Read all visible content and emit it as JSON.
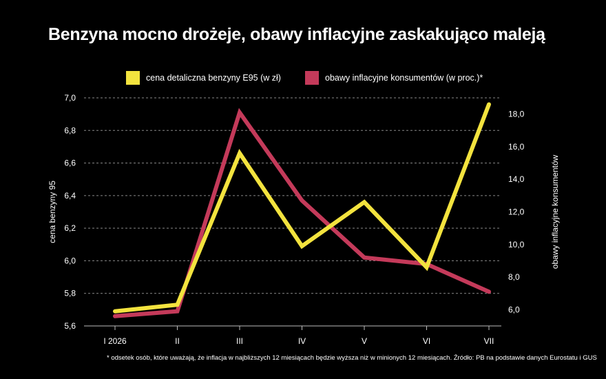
{
  "title": "Benzyna mocno drożeje, obawy inflacyjne zaskakująco maleją",
  "footnote": "* odsetek osób, które uważają, że inflacja w najbliższych 12 miesiącach będzie wyższa niż w minionych 12 miesiącach. Źródło: PB na podstawie danych Eurostatu i GUS",
  "chart_data": {
    "type": "line",
    "categories": [
      "I 2026",
      "II",
      "III",
      "IV",
      "V",
      "VI",
      "VII"
    ],
    "series": [
      {
        "name": "cena detaliczna benzyny E95 (w zł)",
        "axis": "left",
        "color": "#f3e33e",
        "values": [
          5.69,
          5.73,
          6.66,
          6.09,
          6.36,
          5.96,
          6.96
        ]
      },
      {
        "name": "obawy inflacyjne konsumentów (w proc.)*",
        "axis": "right",
        "color": "#c43a5a",
        "values": [
          5.6,
          5.9,
          18.1,
          12.7,
          9.2,
          8.8,
          7.1
        ]
      }
    ],
    "ylabel": "cena benzyny 95",
    "y2label": "obawy inflacyjne konsumentów",
    "ylim": [
      5.6,
      7.0
    ],
    "yticks": [
      "5,6",
      "5,8",
      "6,0",
      "6,2",
      "6,4",
      "6,6",
      "6,8",
      "7,0"
    ],
    "y2lim": [
      5.0,
      19.0
    ],
    "y2ticks": [
      "6,0",
      "8,0",
      "10,0",
      "12,0",
      "14,0",
      "16,0",
      "18,0"
    ],
    "grid": true,
    "legend": "top"
  }
}
